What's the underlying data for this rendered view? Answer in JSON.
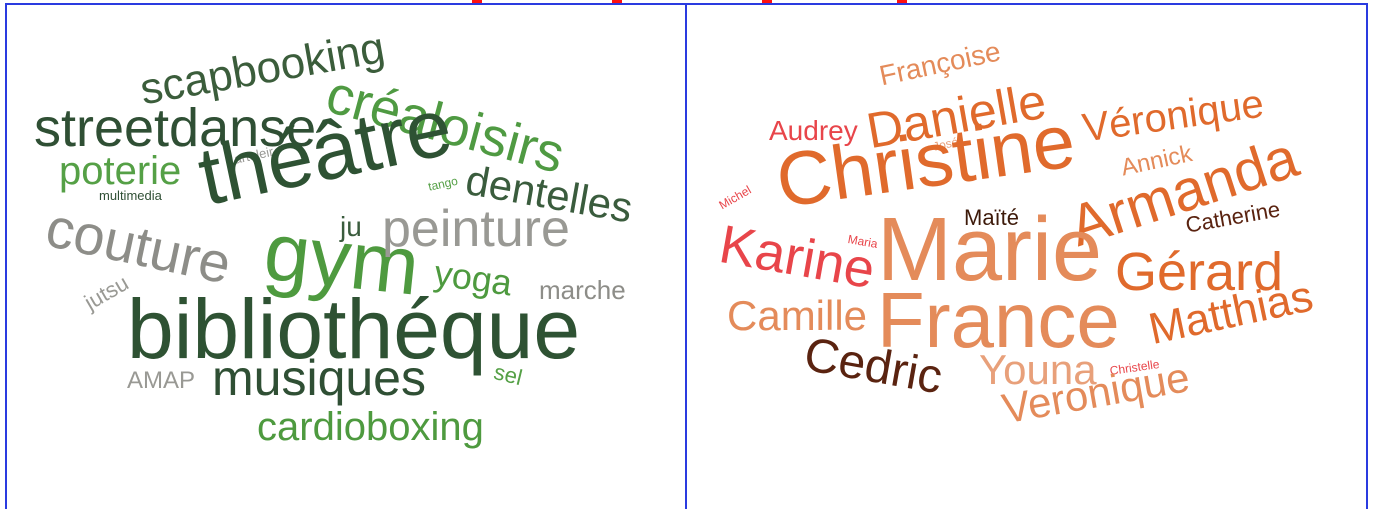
{
  "left_cloud": {
    "words": [
      {
        "text": "scapbooking",
        "color": "#3b5d3b"
      },
      {
        "text": "créaloisirs",
        "color": "#4f9a42"
      },
      {
        "text": "streetdanse",
        "color": "#2f4f34"
      },
      {
        "text": "poterie",
        "color": "#55a046"
      },
      {
        "text": "arteleir",
        "color": "#9a9a96"
      },
      {
        "text": "multimedia",
        "color": "#2f4f34"
      },
      {
        "text": "théâtre",
        "color": "#2e5233"
      },
      {
        "text": "tango",
        "color": "#55a046"
      },
      {
        "text": "dentelles",
        "color": "#3a5c3d"
      },
      {
        "text": "couture",
        "color": "#8d8d88"
      },
      {
        "text": "gym",
        "color": "#4e9a3f"
      },
      {
        "text": "ju",
        "color": "#3a5c3d"
      },
      {
        "text": "peinture",
        "color": "#999994"
      },
      {
        "text": "jutsu",
        "color": "#999994"
      },
      {
        "text": "yoga",
        "color": "#4e9a3f"
      },
      {
        "text": "marche",
        "color": "#8d8d88"
      },
      {
        "text": "bibliothéque",
        "color": "#2e5233"
      },
      {
        "text": "AMAP",
        "color": "#999994"
      },
      {
        "text": "musiques",
        "color": "#2f4f34"
      },
      {
        "text": "sel",
        "color": "#55a046"
      },
      {
        "text": "cardioboxing",
        "color": "#4e9a3f"
      }
    ]
  },
  "right_cloud": {
    "words": [
      {
        "text": "Françoise",
        "color": "#e48b5a"
      },
      {
        "text": "Audrey",
        "color": "#e8454a"
      },
      {
        "text": "Danielle",
        "color": "#e06a2c"
      },
      {
        "text": "Véronique",
        "color": "#e06a2c"
      },
      {
        "text": "José",
        "color": "#e8a07a"
      },
      {
        "text": "Christine",
        "color": "#e06a2c"
      },
      {
        "text": "Annick",
        "color": "#e48b5a"
      },
      {
        "text": "Michel",
        "color": "#e8454a"
      },
      {
        "text": "Armanda",
        "color": "#e06a2c"
      },
      {
        "text": "Maïté",
        "color": "#3d1a0a"
      },
      {
        "text": "Catherine",
        "color": "#5a2310"
      },
      {
        "text": "Maria",
        "color": "#e8454a"
      },
      {
        "text": "Karine",
        "color": "#e8454a"
      },
      {
        "text": "Marie",
        "color": "#e48b5a"
      },
      {
        "text": "Gérard",
        "color": "#e06a2c"
      },
      {
        "text": "Camille",
        "color": "#e48b5a"
      },
      {
        "text": "France",
        "color": "#e48b5a"
      },
      {
        "text": "Matthias",
        "color": "#e06a2c"
      },
      {
        "text": "Cedric",
        "color": "#5a2310"
      },
      {
        "text": "Youna",
        "color": "#e8a07a"
      },
      {
        "text": "Christelle",
        "color": "#e8454a"
      },
      {
        "text": "Veronique",
        "color": "#e48b5a"
      }
    ]
  }
}
